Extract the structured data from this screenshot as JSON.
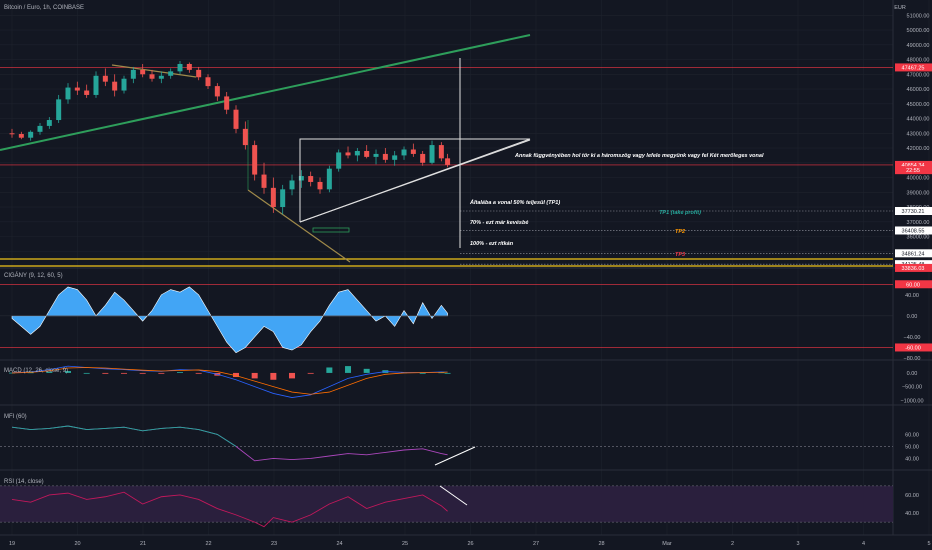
{
  "chart_data": {
    "type": "candlestick",
    "title": "Bitcoin / Euro, 1h, COINBASE",
    "currency": "EUR",
    "x_ticks": [
      "19",
      "20",
      "21",
      "22",
      "23",
      "24",
      "25",
      "26",
      "27",
      "28",
      "Mar",
      "2",
      "3",
      "4",
      "5"
    ],
    "price_axis": {
      "ticks": [
        51000,
        50000,
        49000,
        48000,
        47000,
        46000,
        45000,
        44000,
        43000,
        42000,
        41000,
        40000,
        39000,
        38000,
        37000,
        36000,
        35000
      ],
      "range": [
        34000,
        51700
      ]
    },
    "candles": [
      {
        "x": 0.0,
        "o": 43000,
        "h": 43300,
        "l": 42700,
        "c": 42950
      },
      {
        "x": 0.15,
        "o": 42950,
        "h": 43100,
        "l": 42600,
        "c": 42700
      },
      {
        "x": 0.3,
        "o": 42700,
        "h": 43200,
        "l": 42500,
        "c": 43100
      },
      {
        "x": 0.45,
        "o": 43100,
        "h": 43700,
        "l": 42900,
        "c": 43500
      },
      {
        "x": 0.6,
        "o": 43500,
        "h": 44100,
        "l": 43300,
        "c": 43900
      },
      {
        "x": 0.75,
        "o": 43900,
        "h": 45600,
        "l": 43700,
        "c": 45300
      },
      {
        "x": 0.9,
        "o": 45300,
        "h": 46400,
        "l": 45000,
        "c": 46100
      },
      {
        "x": 1.05,
        "o": 46100,
        "h": 46500,
        "l": 45600,
        "c": 45900
      },
      {
        "x": 1.2,
        "o": 45900,
        "h": 46300,
        "l": 45400,
        "c": 45600
      },
      {
        "x": 1.35,
        "o": 45600,
        "h": 47200,
        "l": 45400,
        "c": 46900
      },
      {
        "x": 1.5,
        "o": 46900,
        "h": 47400,
        "l": 46200,
        "c": 46500
      },
      {
        "x": 1.65,
        "o": 46500,
        "h": 47000,
        "l": 45500,
        "c": 45900
      },
      {
        "x": 1.8,
        "o": 45900,
        "h": 46900,
        "l": 45700,
        "c": 46700
      },
      {
        "x": 1.95,
        "o": 46700,
        "h": 47500,
        "l": 46400,
        "c": 47300
      },
      {
        "x": 2.1,
        "o": 47300,
        "h": 47700,
        "l": 46800,
        "c": 47000
      },
      {
        "x": 2.25,
        "o": 47000,
        "h": 47300,
        "l": 46500,
        "c": 46700
      },
      {
        "x": 2.4,
        "o": 46700,
        "h": 47200,
        "l": 46400,
        "c": 46900
      },
      {
        "x": 2.55,
        "o": 46900,
        "h": 47400,
        "l": 46700,
        "c": 47200
      },
      {
        "x": 2.7,
        "o": 47200,
        "h": 47900,
        "l": 47000,
        "c": 47700
      },
      {
        "x": 2.85,
        "o": 47700,
        "h": 47800,
        "l": 47100,
        "c": 47300
      },
      {
        "x": 3.0,
        "o": 47300,
        "h": 47500,
        "l": 46600,
        "c": 46800
      },
      {
        "x": 3.15,
        "o": 46800,
        "h": 47000,
        "l": 46000,
        "c": 46200
      },
      {
        "x": 3.3,
        "o": 46200,
        "h": 46400,
        "l": 45200,
        "c": 45500
      },
      {
        "x": 3.45,
        "o": 45500,
        "h": 45800,
        "l": 44300,
        "c": 44600
      },
      {
        "x": 3.6,
        "o": 44600,
        "h": 44900,
        "l": 43000,
        "c": 43300
      },
      {
        "x": 3.75,
        "o": 43300,
        "h": 43800,
        "l": 41900,
        "c": 42200
      },
      {
        "x": 3.9,
        "o": 42200,
        "h": 42500,
        "l": 39800,
        "c": 40200
      },
      {
        "x": 4.05,
        "o": 40200,
        "h": 41000,
        "l": 38900,
        "c": 39300
      },
      {
        "x": 4.2,
        "o": 39300,
        "h": 40000,
        "l": 37600,
        "c": 38000
      },
      {
        "x": 4.35,
        "o": 38000,
        "h": 39500,
        "l": 37500,
        "c": 39200
      },
      {
        "x": 4.5,
        "o": 39200,
        "h": 40200,
        "l": 38800,
        "c": 39800
      },
      {
        "x": 4.65,
        "o": 39800,
        "h": 40500,
        "l": 39300,
        "c": 40100
      },
      {
        "x": 4.8,
        "o": 40100,
        "h": 40400,
        "l": 39400,
        "c": 39700
      },
      {
        "x": 4.95,
        "o": 39700,
        "h": 40000,
        "l": 38900,
        "c": 39200
      },
      {
        "x": 5.1,
        "o": 39200,
        "h": 40800,
        "l": 39000,
        "c": 40600
      },
      {
        "x": 5.25,
        "o": 40600,
        "h": 41900,
        "l": 40400,
        "c": 41700
      },
      {
        "x": 5.4,
        "o": 41700,
        "h": 42100,
        "l": 41300,
        "c": 41500
      },
      {
        "x": 5.55,
        "o": 41500,
        "h": 42000,
        "l": 41100,
        "c": 41800
      },
      {
        "x": 5.7,
        "o": 41800,
        "h": 42200,
        "l": 41300,
        "c": 41400
      },
      {
        "x": 5.85,
        "o": 41400,
        "h": 41900,
        "l": 40900,
        "c": 41600
      },
      {
        "x": 6.0,
        "o": 41600,
        "h": 42000,
        "l": 41000,
        "c": 41200
      },
      {
        "x": 6.15,
        "o": 41200,
        "h": 41800,
        "l": 40800,
        "c": 41500
      },
      {
        "x": 6.3,
        "o": 41500,
        "h": 42100,
        "l": 41200,
        "c": 41900
      },
      {
        "x": 6.45,
        "o": 41900,
        "h": 42300,
        "l": 41400,
        "c": 41600
      },
      {
        "x": 6.6,
        "o": 41600,
        "h": 41800,
        "l": 40800,
        "c": 41000
      },
      {
        "x": 6.75,
        "o": 41000,
        "h": 42500,
        "l": 40900,
        "c": 42200
      },
      {
        "x": 6.9,
        "o": 42200,
        "h": 42400,
        "l": 41100,
        "c": 41300
      },
      {
        "x": 7.0,
        "o": 41300,
        "h": 41600,
        "l": 40700,
        "c": 40855
      }
    ],
    "horizontal_levels": [
      {
        "value": 47467.25,
        "label": "47467.25",
        "color": "#f23645"
      },
      {
        "value": 40854.34,
        "label": "40854.34",
        "color": "#f23645"
      },
      {
        "value": 37730.21,
        "label": "37730.21",
        "color": "#ffffff"
      },
      {
        "value": 36408.55,
        "label": "36408.55",
        "color": "#ffffff"
      },
      {
        "value": 34861.24,
        "label": "34861.24",
        "color": "#ffffff"
      },
      {
        "value": 34125.48,
        "label": "34125.48",
        "color": "#ffffff"
      }
    ],
    "price_tags": [
      {
        "value": 40500,
        "label": "22:55",
        "color": "#f23645"
      },
      {
        "value": 33870,
        "label": "33836.03",
        "color": "#f23645"
      }
    ],
    "annotations": {
      "triangle_note": "Annak függvényében hol tör ki a háromszög vagy lefele megyünk vagy fel Két merőleges vonal",
      "tp1_note": "Általába a vonal 50% teljesül (TP1)",
      "tp2_note": "70% - ezt már kevésbé",
      "tp3_note": "100% - ezt ritkán",
      "tp1_label": "TP1 (take profit)",
      "tp2_label": "TP2",
      "tp3_label": "TP3"
    },
    "indicators": [
      {
        "name": "CIGÁNY (9, 12, 60, 5)",
        "ticks": [
          60,
          40,
          0,
          -40,
          -60,
          -80
        ],
        "tick_labels": [
          "60.00",
          "40.00",
          "0.00",
          "−40.00",
          "−60.00",
          "−80.00"
        ],
        "levels": [
          60,
          -60
        ],
        "level_labels": [
          "60.00",
          "-60.00"
        ],
        "range": [
          -80,
          70
        ],
        "x": [
          0,
          0.15,
          0.3,
          0.45,
          0.6,
          0.75,
          0.9,
          1.05,
          1.2,
          1.35,
          1.5,
          1.65,
          1.8,
          1.95,
          2.1,
          2.25,
          2.4,
          2.55,
          2.7,
          2.85,
          3.0,
          3.15,
          3.3,
          3.45,
          3.6,
          3.75,
          3.9,
          4.05,
          4.2,
          4.35,
          4.5,
          4.65,
          4.8,
          4.95,
          5.1,
          5.25,
          5.4,
          5.55,
          5.7,
          5.85,
          6.0,
          6.15,
          6.3,
          6.45,
          6.6,
          6.75,
          6.9,
          7.0
        ],
        "values": [
          -5,
          -20,
          -35,
          -20,
          10,
          40,
          55,
          50,
          30,
          0,
          20,
          45,
          30,
          10,
          -10,
          10,
          40,
          50,
          45,
          55,
          40,
          10,
          -20,
          -50,
          -70,
          -60,
          -40,
          -20,
          -30,
          -60,
          -65,
          -55,
          -30,
          -10,
          20,
          45,
          50,
          30,
          10,
          -10,
          0,
          -20,
          10,
          -15,
          25,
          -5,
          20,
          5
        ]
      },
      {
        "name": "MACD (12, 26, close, 9)",
        "ticks": [
          0,
          -500,
          -1000
        ],
        "tick_labels": [
          "0.00",
          "−500.00",
          "−1000.00"
        ],
        "range": [
          -1100,
          400
        ],
        "x": [
          0,
          0.3,
          0.6,
          0.9,
          1.2,
          1.5,
          1.8,
          2.1,
          2.4,
          2.7,
          3.0,
          3.3,
          3.6,
          3.9,
          4.2,
          4.5,
          4.8,
          5.1,
          5.4,
          5.7,
          6.0,
          6.3,
          6.6,
          6.9,
          7.0
        ],
        "macd": [
          10,
          40,
          120,
          250,
          200,
          150,
          120,
          80,
          60,
          120,
          100,
          -50,
          -250,
          -500,
          -750,
          -900,
          -800,
          -500,
          -200,
          -50,
          50,
          20,
          10,
          40,
          30
        ],
        "signal": [
          0,
          20,
          80,
          180,
          200,
          180,
          140,
          100,
          70,
          90,
          110,
          50,
          -100,
          -300,
          -500,
          -700,
          -780,
          -700,
          -450,
          -200,
          -50,
          0,
          10,
          20,
          30
        ]
      },
      {
        "name": "MFI (60)",
        "ticks": [
          60,
          50,
          40
        ],
        "tick_labels": [
          "60.00",
          "50.00",
          "40.00"
        ],
        "levels": [
          50
        ],
        "range": [
          32,
          72
        ],
        "x": [
          0,
          0.3,
          0.6,
          0.9,
          1.2,
          1.5,
          1.8,
          2.1,
          2.4,
          2.7,
          3.0,
          3.3,
          3.6,
          3.75,
          3.9,
          4.2,
          4.5,
          4.8,
          5.1,
          5.4,
          5.7,
          6.0,
          6.3,
          6.6,
          6.9,
          7.0
        ],
        "values": [
          66,
          64,
          65,
          67,
          64,
          65,
          66,
          63,
          65,
          66,
          64,
          60,
          50,
          44,
          38,
          40,
          39,
          40,
          42,
          44,
          43,
          45,
          47,
          48,
          44,
          43
        ]
      },
      {
        "name": "RSI (14, close)",
        "ticks": [
          60,
          40
        ],
        "tick_labels": [
          "60.00",
          "40.00"
        ],
        "band": [
          30,
          70
        ],
        "range": [
          18,
          82
        ],
        "x": [
          0,
          0.3,
          0.6,
          0.9,
          1.2,
          1.5,
          1.8,
          2.1,
          2.4,
          2.7,
          3.0,
          3.3,
          3.6,
          3.9,
          4.05,
          4.2,
          4.5,
          4.8,
          5.1,
          5.4,
          5.7,
          6.0,
          6.3,
          6.6,
          6.9,
          7.0
        ],
        "values": [
          55,
          52,
          60,
          62,
          55,
          58,
          63,
          50,
          58,
          60,
          55,
          45,
          38,
          30,
          25,
          35,
          30,
          38,
          50,
          58,
          45,
          52,
          56,
          60,
          48,
          42
        ]
      }
    ]
  }
}
